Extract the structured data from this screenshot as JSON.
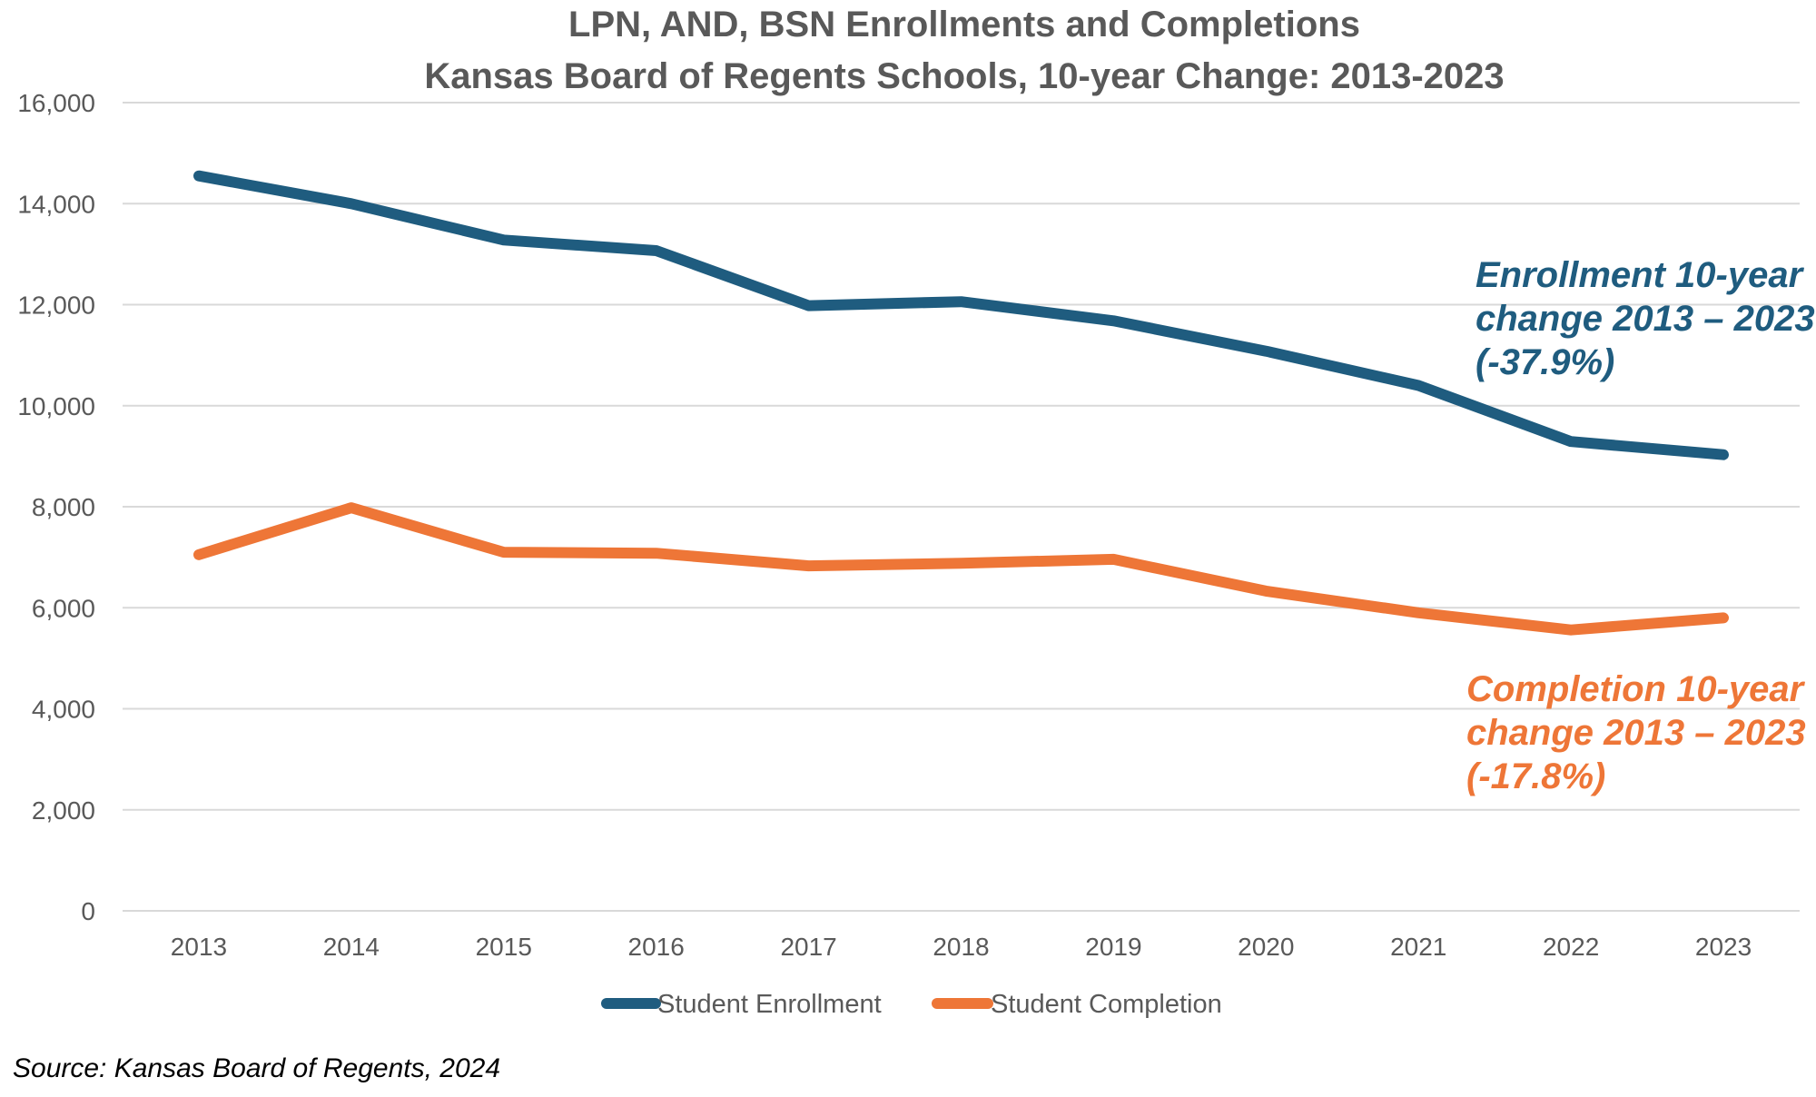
{
  "chart_data": {
    "type": "line",
    "title_lines": [
      "LPN, AND, BSN Enrollments and Completions",
      "Kansas Board of Regents Schools, 10-year Change: 2013-2023"
    ],
    "xlabel": "",
    "ylabel": "",
    "categories": [
      "2013",
      "2014",
      "2015",
      "2016",
      "2017",
      "2018",
      "2019",
      "2020",
      "2021",
      "2022",
      "2023"
    ],
    "ylim": [
      0,
      16000
    ],
    "yticks": [
      0,
      2000,
      4000,
      6000,
      8000,
      10000,
      12000,
      14000,
      16000
    ],
    "ytick_labels": [
      "0",
      "2,000",
      "4,000",
      "6,000",
      "8,000",
      "10,000",
      "12,000",
      "14,000",
      "16,000"
    ],
    "grid": "horizontal",
    "legend_position": "bottom",
    "series": [
      {
        "name": "Student Enrollment",
        "color": "#1f5c7f",
        "values": [
          14550,
          14000,
          13280,
          13070,
          11980,
          12060,
          11680,
          11080,
          10400,
          9290,
          9030
        ]
      },
      {
        "name": "Student Completion",
        "color": "#ee7637",
        "values": [
          7050,
          7980,
          7100,
          7080,
          6830,
          6880,
          6960,
          6330,
          5900,
          5560,
          5800
        ]
      }
    ],
    "annotations": [
      {
        "series": "Student Enrollment",
        "lines": [
          "Enrollment 10-year",
          "change 2013 – 2023",
          "(-37.9%)"
        ]
      },
      {
        "series": "Student Completion",
        "lines": [
          "Completion 10-year",
          "change 2013 – 2023",
          "(-17.8%)"
        ]
      }
    ]
  },
  "source": "Source: Kansas Board of Regents, 2024"
}
